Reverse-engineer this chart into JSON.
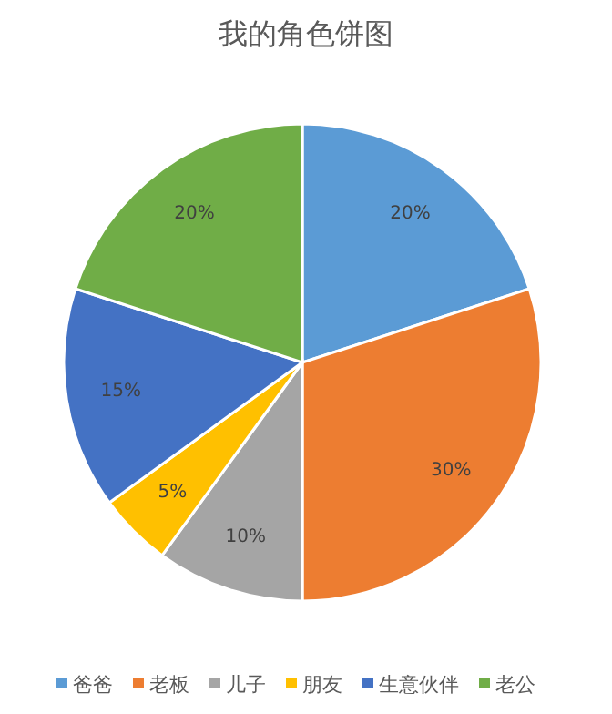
{
  "chart_data": {
    "type": "pie",
    "title": "我的角色饼图",
    "categories": [
      "爸爸",
      "老板",
      "儿子",
      "朋友",
      "生意伙伴",
      "老公"
    ],
    "values": [
      20,
      30,
      10,
      5,
      15,
      20
    ],
    "value_labels": [
      "20%",
      "30%",
      "10%",
      "5%",
      "15%",
      "20%"
    ],
    "colors": [
      "#5b9bd5",
      "#ed7d31",
      "#a5a5a5",
      "#ffc000",
      "#4472c4",
      "#70ad47"
    ],
    "legend": "bottom"
  }
}
